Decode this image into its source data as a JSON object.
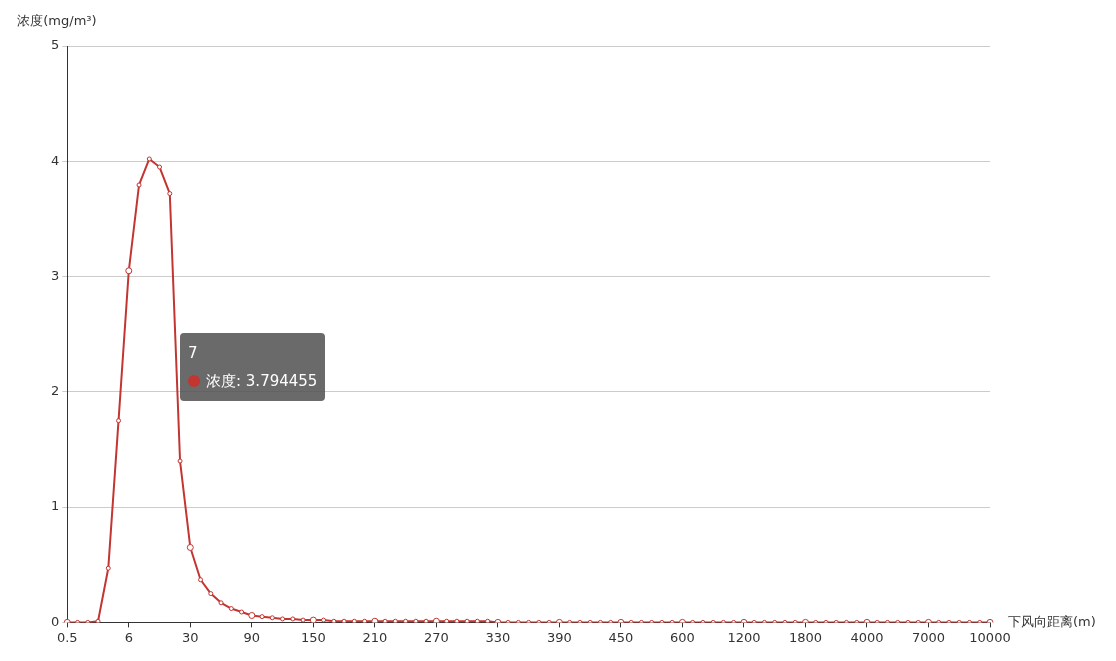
{
  "chart_data": {
    "type": "line",
    "xlabel": "下风向距离(m)",
    "ylabel": "浓度(mg/m³)",
    "categories": [
      "0.5",
      null,
      null,
      null,
      null,
      null,
      "6",
      null,
      null,
      null,
      null,
      null,
      "30",
      null,
      null,
      null,
      null,
      null,
      "90",
      null,
      null,
      null,
      null,
      null,
      "150",
      null,
      null,
      null,
      null,
      null,
      "210",
      null,
      null,
      null,
      null,
      null,
      "270",
      null,
      null,
      null,
      null,
      null,
      "330",
      null,
      null,
      null,
      null,
      null,
      "390",
      null,
      null,
      null,
      null,
      null,
      "450",
      null,
      null,
      null,
      null,
      null,
      "600",
      null,
      null,
      null,
      null,
      null,
      "1200",
      null,
      null,
      null,
      null,
      null,
      "1800",
      null,
      null,
      null,
      null,
      null,
      "4000",
      null,
      null,
      null,
      null,
      null,
      "7000",
      null,
      null,
      null,
      null,
      null,
      "10000"
    ],
    "series": [
      {
        "color": "#c23531",
        "values": [
          0,
          0,
          0,
          0.01,
          0.47,
          1.75,
          3.05,
          3.794455,
          4.02,
          3.95,
          3.72,
          1.4,
          0.65,
          0.37,
          0.25,
          0.17,
          0.12,
          0.09,
          0.06,
          0.05,
          0.04,
          0.03,
          0.03,
          0.02,
          0.02,
          0.02,
          0.01,
          0.01,
          0.01,
          0.01,
          0.01,
          0.01,
          0.01,
          0.01,
          0.01,
          0.01,
          0.01,
          0.01,
          0.01,
          0.01,
          0.01,
          0.01,
          0,
          0,
          0,
          0,
          0,
          0,
          0,
          0,
          0,
          0,
          0,
          0,
          0,
          0,
          0,
          0,
          0,
          0,
          0,
          0,
          0,
          0,
          0,
          0,
          0,
          0,
          0,
          0,
          0,
          0,
          0,
          0,
          0,
          0,
          0,
          0,
          0,
          0,
          0,
          0,
          0,
          0,
          0,
          0,
          0,
          0,
          0,
          0,
          0
        ]
      }
    ],
    "ylim": [
      0,
      5
    ],
    "yticks": [
      0,
      1,
      2,
      3,
      4,
      5
    ],
    "grid": "y",
    "marker": "circle",
    "line_style": "solid",
    "legend": false,
    "annotations": [
      "7",
      "浓度: 3.794455"
    ]
  }
}
